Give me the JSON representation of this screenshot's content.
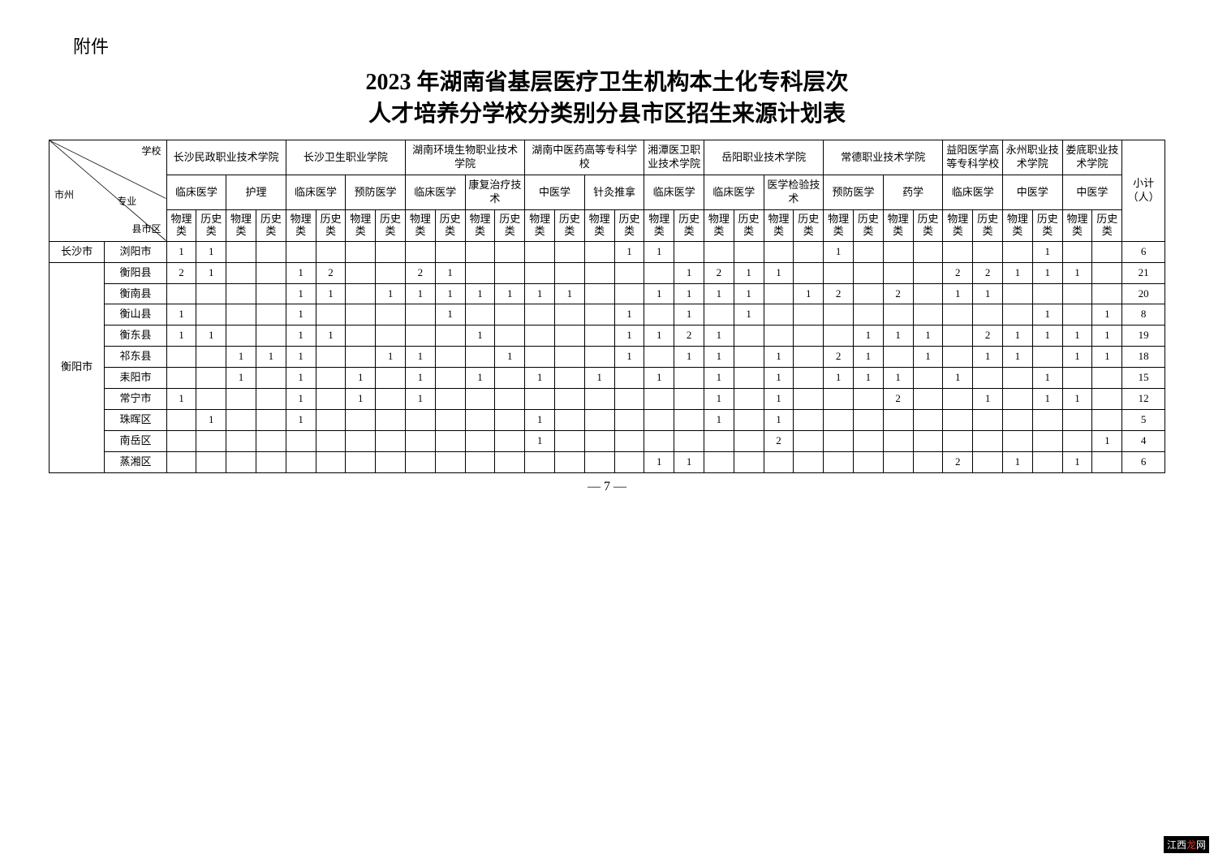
{
  "attachment_label": "附件",
  "title_line1": "2023 年湖南省基层医疗卫生机构本土化专科层次",
  "title_line2": "人才培养分学校分类别分县市区招生来源计划表",
  "header": {
    "diag_school": "学校",
    "diag_city": "市州",
    "diag_major": "专业",
    "diag_county": "县市区",
    "subtotal": "小计（人）"
  },
  "schools": [
    {
      "name": "长沙民政职业技术学院",
      "majors": [
        "临床医学",
        "护理"
      ]
    },
    {
      "name": "长沙卫生职业学院",
      "majors": [
        "临床医学",
        "预防医学"
      ]
    },
    {
      "name": "湖南环境生物职业技术学院",
      "majors": [
        "临床医学",
        "康复治疗技术"
      ]
    },
    {
      "name": "湖南中医药高等专科学校",
      "majors": [
        "中医学",
        "针灸推拿"
      ]
    },
    {
      "name": "湘潭医卫职业技术学院",
      "majors": [
        "临床医学"
      ]
    },
    {
      "name": "岳阳职业技术学院",
      "majors": [
        "临床医学",
        "医学检验技术"
      ]
    },
    {
      "name": "常德职业技术学院",
      "majors": [
        "预防医学",
        "药学"
      ]
    },
    {
      "name": "益阳医学高等专科学校",
      "majors": [
        "临床医学"
      ]
    },
    {
      "name": "永州职业技术学院",
      "majors": [
        "中医学"
      ]
    },
    {
      "name": "娄底职业技术学院",
      "majors": [
        "中医学"
      ]
    }
  ],
  "track_labels": {
    "physics": "物理类",
    "history": "历史类"
  },
  "rows": [
    {
      "city": "长沙市",
      "county": "浏阳市",
      "cells": [
        "1",
        "1",
        "",
        "",
        "",
        "",
        "",
        "",
        "",
        "",
        "",
        "",
        "",
        "",
        "",
        "1",
        "1",
        "",
        "",
        "",
        "",
        "",
        "1",
        "",
        "",
        "",
        "",
        "",
        "",
        "1",
        "",
        "",
        "6"
      ]
    },
    {
      "city": "衡阳市",
      "county": "衡阳县",
      "cells": [
        "2",
        "1",
        "",
        "",
        "1",
        "2",
        "",
        "",
        "2",
        "1",
        "",
        "",
        "",
        "",
        "",
        "",
        "",
        "1",
        "2",
        "1",
        "1",
        "",
        "",
        "",
        "",
        "",
        "2",
        "2",
        "1",
        "1",
        "1",
        "",
        "21"
      ]
    },
    {
      "city": "衡阳市",
      "county": "衡南县",
      "cells": [
        "",
        "",
        "",
        "",
        "1",
        "1",
        "",
        "1",
        "1",
        "1",
        "1",
        "1",
        "1",
        "1",
        "",
        "",
        "1",
        "1",
        "1",
        "1",
        "",
        "1",
        "2",
        "",
        "2",
        "",
        "1",
        "1",
        "",
        "",
        "",
        "",
        "20"
      ]
    },
    {
      "city": "衡阳市",
      "county": "衡山县",
      "cells": [
        "1",
        "",
        "",
        "",
        "1",
        "",
        "",
        "",
        "",
        "1",
        "",
        "",
        "",
        "",
        "",
        "1",
        "",
        "1",
        "",
        "1",
        "",
        "",
        "",
        "",
        "",
        "",
        "",
        "",
        "",
        "1",
        "",
        "1",
        "",
        "8"
      ]
    },
    {
      "city": "衡阳市",
      "county": "衡东县",
      "cells": [
        "1",
        "1",
        "",
        "",
        "1",
        "1",
        "",
        "",
        "",
        "",
        "1",
        "",
        "",
        "",
        "",
        "1",
        "1",
        "2",
        "1",
        "",
        "",
        "",
        "",
        "1",
        "1",
        "1",
        "",
        "2",
        "1",
        "1",
        "1",
        "1",
        "",
        "19"
      ]
    },
    {
      "city": "衡阳市",
      "county": "祁东县",
      "cells": [
        "",
        "",
        "1",
        "1",
        "1",
        "",
        "",
        "1",
        "1",
        "",
        "",
        "1",
        "",
        "",
        "",
        "1",
        "",
        "1",
        "1",
        "",
        "1",
        "",
        "2",
        "1",
        "",
        "1",
        "",
        "1",
        "1",
        "",
        "1",
        "1",
        "18"
      ]
    },
    {
      "city": "衡阳市",
      "county": "耒阳市",
      "cells": [
        "",
        "",
        "1",
        "",
        "1",
        "",
        "1",
        "",
        "1",
        "",
        "1",
        "",
        "1",
        "",
        "1",
        "",
        "1",
        "",
        "1",
        "",
        "1",
        "",
        "1",
        "1",
        "1",
        "",
        "1",
        "",
        "",
        "1",
        "",
        "",
        "15"
      ]
    },
    {
      "city": "衡阳市",
      "county": "常宁市",
      "cells": [
        "1",
        "",
        "",
        "",
        "1",
        "",
        "1",
        "",
        "1",
        "",
        "",
        "",
        "",
        "",
        "",
        "",
        "",
        "",
        "1",
        "",
        "1",
        "",
        "",
        "",
        "2",
        "",
        "",
        "1",
        "",
        "1",
        "1",
        "",
        "",
        "1",
        "12"
      ]
    },
    {
      "city": "衡阳市",
      "county": "珠晖区",
      "cells": [
        "",
        "1",
        "",
        "",
        "1",
        "",
        "",
        "",
        "",
        "",
        "",
        "",
        "1",
        "",
        "",
        "",
        "",
        "",
        "1",
        "",
        "1",
        "",
        "",
        "",
        "",
        "",
        "",
        "",
        "",
        "",
        "",
        "",
        "",
        "5"
      ]
    },
    {
      "city": "衡阳市",
      "county": "南岳区",
      "cells": [
        "",
        "",
        "",
        "",
        "",
        "",
        "",
        "",
        "",
        "",
        "",
        "",
        "1",
        "",
        "",
        "",
        "",
        "",
        "",
        "",
        "2",
        "",
        "",
        "",
        "",
        "",
        "",
        "",
        "",
        "",
        "",
        "1",
        "",
        "4"
      ]
    },
    {
      "city": "衡阳市",
      "county": "蒸湘区",
      "cells": [
        "",
        "",
        "",
        "",
        "",
        "",
        "",
        "",
        "",
        "",
        "",
        "",
        "",
        "",
        "",
        "",
        "1",
        "1",
        "",
        "",
        "",
        "",
        "",
        "",
        "",
        "",
        "2",
        "",
        "1",
        "",
        "1",
        "",
        "6"
      ]
    }
  ],
  "page_number": "— 7 —",
  "watermark": {
    "prefix": "江西",
    "red": "龙",
    "suffix": "网"
  }
}
